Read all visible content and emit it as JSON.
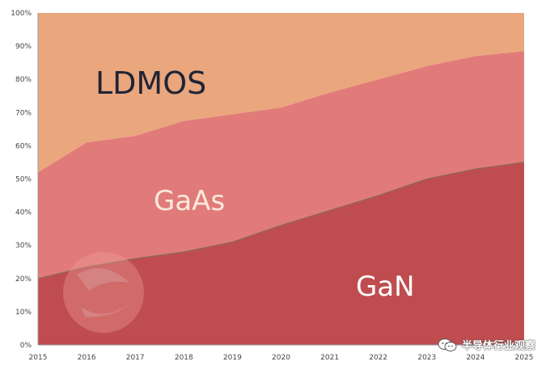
{
  "chart_data": {
    "type": "area",
    "stacked": true,
    "percent": true,
    "x": [
      "2015",
      "2016",
      "2017",
      "2018",
      "2019",
      "2020",
      "2021",
      "2022",
      "2023",
      "2024",
      "2025"
    ],
    "series": [
      {
        "name": "GaN",
        "values": [
          20,
          23.5,
          26,
          28,
          31,
          36,
          40.5,
          45,
          50,
          53,
          55
        ],
        "color": "#bf4d50"
      },
      {
        "name": "GaAs",
        "values": [
          32,
          37.5,
          37,
          39.5,
          38.5,
          35.5,
          35.5,
          35,
          34,
          34,
          33.5
        ],
        "color": "#e17b79"
      },
      {
        "name": "LDMOS",
        "values": [
          48,
          39,
          37,
          32.5,
          30.5,
          28.5,
          24,
          20,
          16,
          13,
          11.5
        ],
        "color": "#eaa67c"
      }
    ],
    "yticks": [
      "0%",
      "10%",
      "20%",
      "30%",
      "40%",
      "50%",
      "60%",
      "70%",
      "80%",
      "90%",
      "100%"
    ],
    "ylim": [
      0,
      100
    ],
    "grid": false,
    "legend": "inline labels"
  },
  "watermark": {
    "text": "半导体行业观察",
    "icon": "wechat-icon"
  }
}
